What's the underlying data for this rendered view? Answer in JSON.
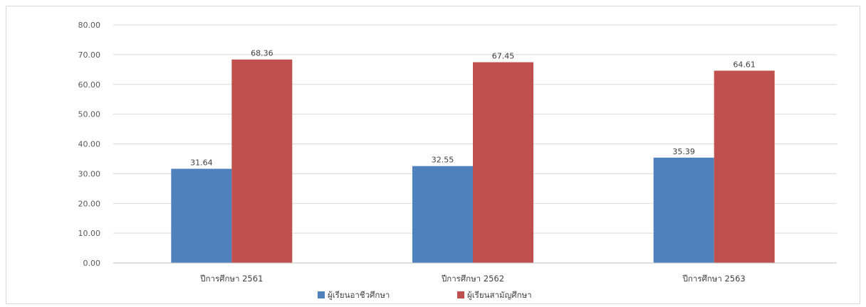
{
  "chart_data": {
    "type": "bar",
    "categories": [
      "ปีการศึกษา 2561",
      "ปีการศึกษา 2562",
      "ปีการศึกษา 2563"
    ],
    "series": [
      {
        "name": "ผู้เรียนอาชีวศึกษา",
        "values": [
          31.64,
          32.55,
          35.39
        ],
        "color": "#4f81bd"
      },
      {
        "name": "ผู้เรียนสามัญศึกษา",
        "values": [
          68.36,
          67.45,
          64.61
        ],
        "color": "#c0504d"
      }
    ],
    "y_ticks": [
      "0.00",
      "10.00",
      "20.00",
      "30.00",
      "40.00",
      "50.00",
      "60.00",
      "70.00",
      "80.00"
    ],
    "ylim": [
      0,
      80
    ],
    "grid": true,
    "legend": "bottom",
    "title": "",
    "xlabel": "",
    "ylabel": "",
    "grid_color": "#d9d9d9"
  }
}
